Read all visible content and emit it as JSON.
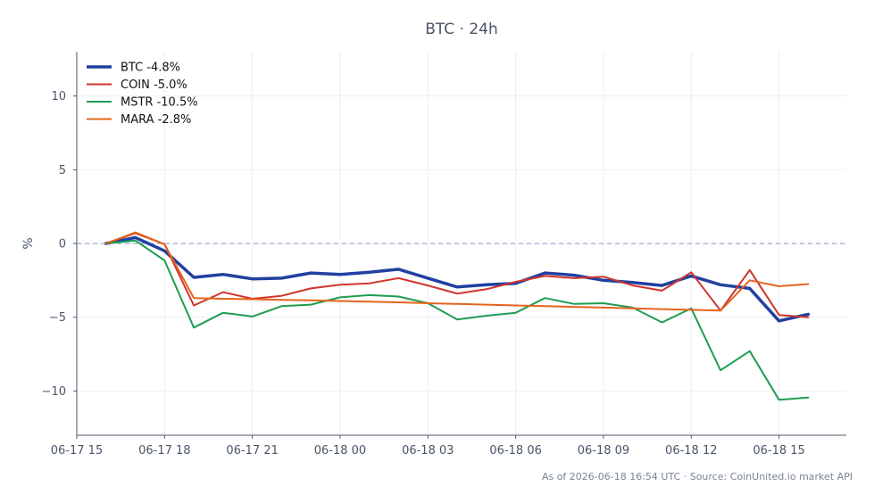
{
  "chart_data": {
    "type": "line",
    "title": "BTC · 24h",
    "ylabel": "%",
    "xlabel": "",
    "ylim": [
      -13,
      13
    ],
    "yticks": [
      10,
      5,
      0,
      -5,
      -10
    ],
    "ytick_labels": [
      "10",
      "5",
      "0",
      "−5",
      "−10"
    ],
    "xlim": [
      0,
      26.3
    ],
    "xticks": [
      0,
      3,
      6,
      9,
      12,
      15,
      18,
      21,
      24
    ],
    "xtick_labels": [
      "06-17 15",
      "06-17 18",
      "06-17 21",
      "06-18 00",
      "06-18 03",
      "06-18 06",
      "06-18 09",
      "06-18 12",
      "06-18 15"
    ],
    "grid": true,
    "zero_line": true,
    "legend_position": "top-left",
    "series": [
      {
        "name": "BTC -4.8%",
        "color": "#2140a0",
        "width": 3.5,
        "x": [
          1,
          2,
          3,
          4,
          5,
          6,
          7,
          8,
          9,
          10,
          11,
          12,
          13,
          14,
          15,
          16,
          17,
          18,
          19,
          20,
          21,
          22,
          23,
          24,
          25
        ],
        "values": [
          0.0,
          0.4,
          -0.5,
          -2.3,
          -2.1,
          -2.4,
          -2.35,
          -2.0,
          -2.1,
          -1.95,
          -1.75,
          -2.35,
          -2.95,
          -2.8,
          -2.7,
          -2.0,
          -2.15,
          -2.5,
          -2.65,
          -2.85,
          -2.2,
          -2.8,
          -3.05,
          -5.25,
          -4.8
        ]
      },
      {
        "name": "COIN -5.0%",
        "color": "#d0342c",
        "width": 2,
        "x": [
          1,
          2,
          3,
          4,
          5,
          6,
          7,
          8,
          9,
          10,
          11,
          12,
          13,
          14,
          15,
          16,
          17,
          18,
          19,
          20,
          21,
          22,
          23,
          24,
          25
        ],
        "values": [
          0.0,
          0.7,
          -0.05,
          -4.2,
          -3.3,
          -3.75,
          -3.55,
          -3.05,
          -2.8,
          -2.7,
          -2.35,
          -2.85,
          -3.4,
          -3.1,
          -2.6,
          -2.2,
          -2.35,
          -2.25,
          -2.85,
          -3.2,
          -1.95,
          -4.55,
          -1.8,
          -4.85,
          -5.0
        ]
      },
      {
        "name": "MSTR -10.5%",
        "color": "#1f9d52",
        "width": 2,
        "x": [
          1,
          2,
          3,
          4,
          5,
          6,
          7,
          8,
          9,
          10,
          11,
          12,
          13,
          14,
          15,
          16,
          17,
          18,
          19,
          20,
          21,
          22,
          23,
          24,
          25
        ],
        "values": [
          0.0,
          0.2,
          -1.15,
          -5.7,
          -4.7,
          -4.95,
          -4.25,
          -4.15,
          -3.65,
          -3.5,
          -3.6,
          -4.05,
          -5.15,
          -4.9,
          -4.7,
          -3.7,
          -4.1,
          -4.05,
          -4.35,
          -5.35,
          -4.4,
          -8.6,
          -7.3,
          -10.6,
          -10.45
        ]
      },
      {
        "name": "MARA -2.8%",
        "color": "#e4641c",
        "width": 2,
        "x": [
          1,
          2,
          3,
          4,
          5,
          6,
          7,
          8,
          9,
          10,
          11,
          12,
          13,
          14,
          15,
          16,
          17,
          18,
          19,
          20,
          21,
          22,
          23,
          24,
          25
        ],
        "values": [
          0.0,
          0.75,
          -0.05,
          -3.7,
          -3.75,
          -3.78,
          -3.82,
          -3.86,
          -3.9,
          -3.95,
          -3.99,
          -4.05,
          -4.1,
          -4.15,
          -4.2,
          -4.25,
          -4.3,
          -4.35,
          -4.4,
          -4.45,
          -4.5,
          -4.55,
          -2.5,
          -2.9,
          -2.75
        ]
      }
    ]
  },
  "footer": "As of 2026-06-18 16:54 UTC · Source: CoinUnited.io market API"
}
